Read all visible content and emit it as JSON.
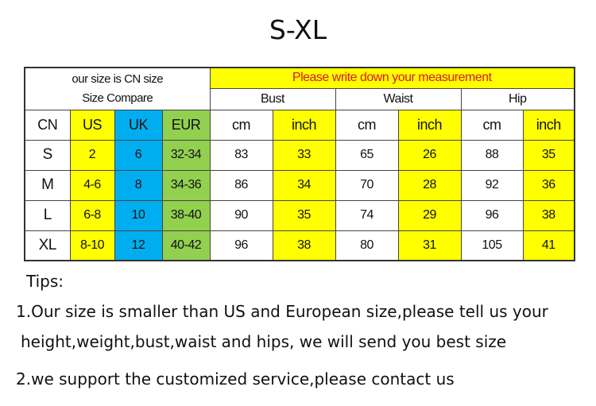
{
  "title": "S-XL",
  "table": {
    "compare_line1": "our size is CN size",
    "compare_line2": "Size Compare",
    "measure_note": "Please write down your measurement",
    "groups": [
      "Bust",
      "Waist",
      "Hip"
    ],
    "columns": [
      "CN",
      "US",
      "UK",
      "EUR",
      "cm",
      "inch",
      "cm",
      "inch",
      "cm",
      "inch"
    ],
    "rows": [
      [
        "S",
        "2",
        "6",
        "32-34",
        "83",
        "33",
        "65",
        "26",
        "88",
        "35"
      ],
      [
        "M",
        "4-6",
        "8",
        "34-36",
        "86",
        "34",
        "70",
        "28",
        "92",
        "36"
      ],
      [
        "L",
        "6-8",
        "10",
        "38-40",
        "90",
        "35",
        "74",
        "29",
        "96",
        "38"
      ],
      [
        "XL",
        "8-10",
        "12",
        "40-42",
        "96",
        "38",
        "80",
        "31",
        "105",
        "41"
      ]
    ]
  },
  "colors": {
    "yellow": "#ffff00",
    "blue": "#00aeef",
    "green": "#92d050",
    "note_red": "#e0151b"
  },
  "tips": {
    "heading": "Tips:",
    "line1": "1.Our size is smaller than US and European size,please tell us your",
    "line2": "height,weight,bust,waist and hips, we will send you best size",
    "line3": "2.we support the customized service,please contact us"
  }
}
